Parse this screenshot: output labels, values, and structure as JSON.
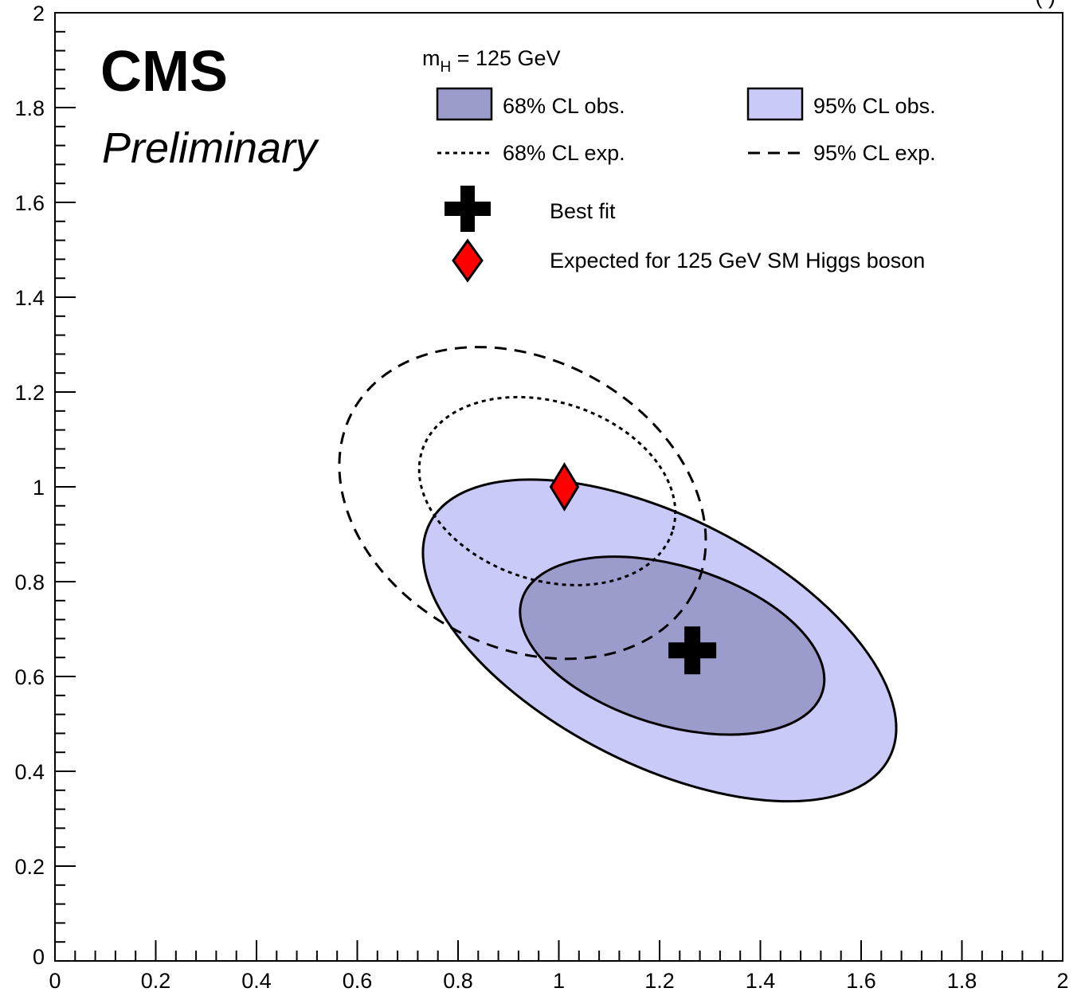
{
  "chart_data": {
    "type": "contour",
    "title": "",
    "xlabel": "",
    "ylabel": "",
    "xlim": [
      0,
      2
    ],
    "ylim": [
      0,
      2
    ],
    "x_ticks": [
      "0",
      "0.2",
      "0.4",
      "0.6",
      "0.8",
      "1",
      "1.2",
      "1.4",
      "1.6",
      "1.8",
      "2"
    ],
    "y_ticks": [
      "0",
      "0.2",
      "0.4",
      "0.6",
      "0.8",
      "1",
      "1.2",
      "1.4",
      "1.6",
      "1.8",
      "2"
    ],
    "grid": false,
    "labels": {
      "experiment": "CMS",
      "status": "Preliminary",
      "top_right_fragment": "( )"
    },
    "legend": {
      "placement": "top",
      "mass_base": "m",
      "mass_sub": "H",
      "mass_rest": " = 125 GeV",
      "entries": {
        "obs68": "68% CL obs.",
        "obs95": "95% CL obs.",
        "exp68": "68% CL exp.",
        "exp95": "95% CL exp.",
        "best_fit": "Best fit",
        "sm": "Expected for 125 GeV SM Higgs boson"
      }
    },
    "colors": {
      "obs68_fill": "#9b9bcc",
      "obs95_fill": "#cacaf8",
      "sm_marker": "#ff0000",
      "line": "#000000"
    },
    "contours": [
      {
        "name": "95% CL obs.",
        "style": "filled",
        "center": [
          1.2,
          0.676
        ],
        "semi_axes": [
          0.512,
          0.261
        ],
        "angle_deg": -27
      },
      {
        "name": "68% CL obs.",
        "style": "filled",
        "center": [
          1.225,
          0.665
        ],
        "semi_axes": [
          0.312,
          0.168
        ],
        "angle_deg": -17
      },
      {
        "name": "95% CL exp.",
        "style": "dashed",
        "center": [
          0.928,
          0.966
        ],
        "semi_axes": [
          0.383,
          0.303
        ],
        "angle_deg": -28
      },
      {
        "name": "68% CL exp.",
        "style": "dotted",
        "center": [
          0.977,
          0.991
        ],
        "semi_axes": [
          0.261,
          0.188
        ],
        "angle_deg": -18
      }
    ],
    "points": {
      "best_fit": {
        "x": 1.265,
        "y": 0.655,
        "marker": "cross"
      },
      "sm": {
        "x": 1.0,
        "y": 1.0,
        "marker": "diamond"
      }
    }
  }
}
